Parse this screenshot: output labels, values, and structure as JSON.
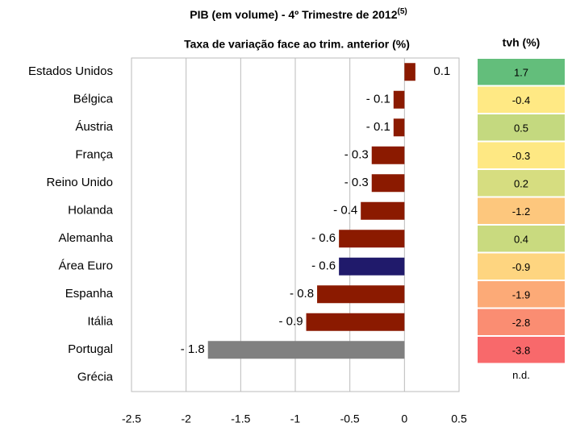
{
  "chart_data": {
    "type": "bar",
    "orientation": "horizontal",
    "title": "PIB (em volume) - 4º Trimestre de 2012",
    "title_note": "(5)",
    "subtitle": "Taxa de variação face ao trim. anterior (%)",
    "categories": [
      "Estados Unidos",
      "Bélgica",
      "Áustria",
      "França",
      "Reino Unido",
      "Holanda",
      "Alemanha",
      "Área Euro",
      "Espanha",
      "Itália",
      "Portugal",
      "Grécia"
    ],
    "values": [
      0.1,
      -0.1,
      -0.1,
      -0.3,
      -0.3,
      -0.4,
      -0.6,
      -0.6,
      -0.8,
      -0.9,
      -1.8,
      null
    ],
    "value_labels": [
      "0.1",
      "- 0.1",
      "- 0.1",
      "- 0.3",
      "- 0.3",
      "- 0.4",
      "- 0.6",
      "- 0.6",
      "- 0.8",
      "- 0.9",
      "- 1.8",
      null
    ],
    "colors": [
      "#8b1a00",
      "#8b1a00",
      "#8b1a00",
      "#8b1a00",
      "#8b1a00",
      "#8b1a00",
      "#8b1a00",
      "#201a6b",
      "#8b1a00",
      "#8b1a00",
      "#808080",
      "#8b1a00"
    ],
    "xlim": [
      -2.5,
      0.5
    ],
    "xticks": [
      -2.5,
      -2,
      -1.5,
      -1,
      -0.5,
      0,
      0.5
    ],
    "grid": true,
    "side_table": {
      "title": "tvh (%)",
      "values": [
        1.7,
        -0.4,
        0.5,
        -0.3,
        0.2,
        -1.2,
        0.4,
        -0.9,
        -1.9,
        -2.8,
        -3.8,
        null
      ],
      "missing_label": "n.d.",
      "colors": [
        "#63be7b",
        "#ffe984",
        "#c4d97f",
        "#fee883",
        "#d6dd80",
        "#fdc77d",
        "#c9da7f",
        "#fed580",
        "#fcaa77",
        "#fa8d72",
        "#f8696b",
        null
      ]
    }
  }
}
